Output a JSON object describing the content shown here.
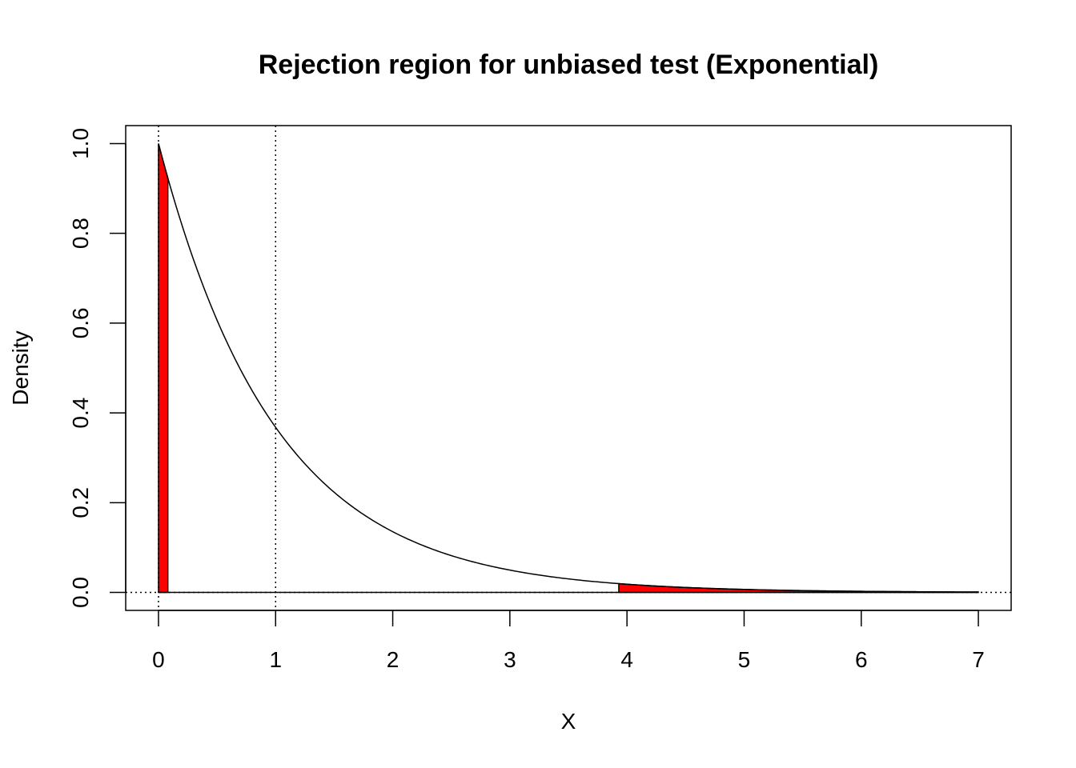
{
  "chart_data": {
    "type": "area",
    "title": "Rejection region for unbiased test (Exponential)",
    "xlabel": "X",
    "ylabel": "Density",
    "xlim": [
      -0.28,
      7.28
    ],
    "ylim": [
      -0.04,
      1.04
    ],
    "x_ticks": [
      "0",
      "1",
      "2",
      "3",
      "4",
      "5",
      "6",
      "7"
    ],
    "y_ticks": [
      "0.0",
      "0.2",
      "0.4",
      "0.6",
      "0.8",
      "1.0"
    ],
    "density": {
      "distribution": "exponential",
      "rate": 1,
      "x_range": [
        0,
        7
      ]
    },
    "reference_lines": {
      "vertical": [
        0,
        1
      ],
      "horizontal": [
        0
      ],
      "style": "dotted"
    },
    "rejection_regions": [
      {
        "from": 0,
        "to": 0.08,
        "color": "#ff0000"
      },
      {
        "from": 3.93,
        "to": 7,
        "color": "#ff0000"
      }
    ],
    "grid": false
  }
}
